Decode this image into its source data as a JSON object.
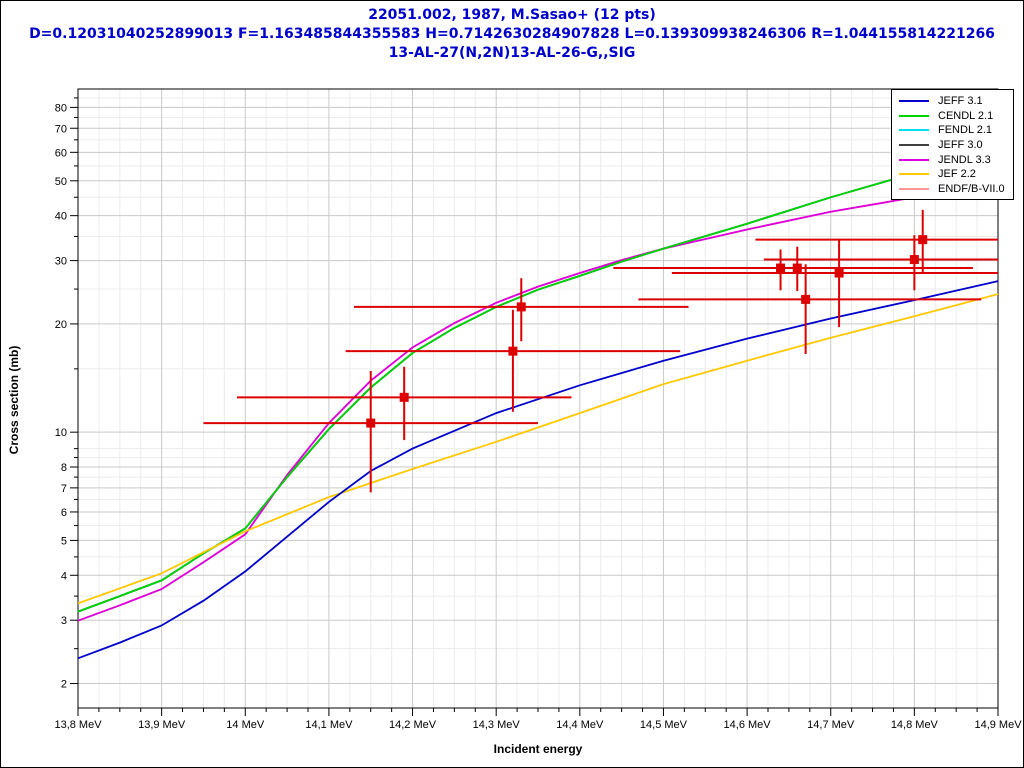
{
  "window": {
    "background": "#ffffff",
    "border_color": "#000000"
  },
  "title": {
    "line1": "22051.002, 1987, M.Sasao+ (12 pts)",
    "line2": "D=0.12031040252899013 F=1.163485844355583 H=0.7142630284907828 L=0.139309938246306 R=1.044155814221266",
    "line3": "13-AL-27(N,2N)13-AL-26-G,,SIG",
    "color": "#0000cc"
  },
  "chart_data": {
    "type": "line",
    "title": "22051.002, 1987, M.Sasao+ (12 pts)",
    "xlabel": "Incident energy",
    "ylabel": "Cross section (mb)",
    "x_axis": {
      "min": 13.8,
      "max": 14.9,
      "major_tick_step": 0.1,
      "minor_tick_step": 0.025,
      "tick_labels": [
        "13,8 MeV",
        "13,9 MeV",
        "14 MeV",
        "14,1 MeV",
        "14,2 MeV",
        "14,3 MeV",
        "14,4 MeV",
        "14,5 MeV",
        "14,6 MeV",
        "14,7 MeV",
        "14,8 MeV",
        "14,9 MeV"
      ]
    },
    "y_axis": {
      "scale": "log",
      "min": 1.71,
      "max": 90,
      "major_ticks": [
        80,
        70,
        60,
        50,
        40,
        30,
        20,
        10,
        8,
        7,
        6,
        5,
        4,
        3,
        2
      ],
      "minor_ticks": [
        85,
        75,
        65,
        55,
        45,
        35,
        25,
        15,
        9,
        8.5,
        7.5,
        6.5,
        5.5,
        4.5,
        3.5,
        2.5
      ]
    },
    "grid": {
      "major_color": "#c9c9c9",
      "minor_color": "#ececec"
    },
    "draw_order": [
      2,
      3,
      6,
      4,
      1,
      5,
      0
    ],
    "series": [
      {
        "name": "JEFF 3.1",
        "color": "#0000cc",
        "x": [
          13.8,
          13.85,
          13.9,
          13.95,
          14.0,
          14.1,
          14.15,
          14.2,
          14.3,
          14.4,
          14.5,
          14.6,
          14.7,
          14.8,
          14.9
        ],
        "y": [
          2.35,
          2.6,
          2.9,
          3.4,
          4.1,
          6.4,
          7.8,
          9.0,
          11.3,
          13.5,
          15.8,
          18.2,
          20.7,
          23.3,
          26.3
        ]
      },
      {
        "name": "CENDL 2.1",
        "color": "#00d400",
        "x": [
          13.8,
          13.85,
          13.9,
          13.95,
          14.0,
          14.05,
          14.1,
          14.15,
          14.2,
          14.25,
          14.3,
          14.35,
          14.4,
          14.45,
          14.5,
          14.6,
          14.7,
          14.8,
          14.9
        ],
        "y": [
          3.17,
          3.5,
          3.87,
          4.6,
          5.4,
          7.5,
          10.2,
          13.3,
          16.6,
          19.5,
          22.3,
          24.9,
          27.2,
          29.8,
          32.4,
          38.0,
          45.0,
          52.5,
          60.0
        ]
      },
      {
        "name": "FENDL 2.1",
        "color": "#00dfee",
        "x": [
          13.8,
          13.85,
          13.9,
          13.95,
          14.0,
          14.05,
          14.1,
          14.15,
          14.2,
          14.25,
          14.3,
          14.35,
          14.4,
          14.45,
          14.5,
          14.6,
          14.7,
          14.8,
          14.9
        ],
        "y": [
          3.17,
          3.5,
          3.87,
          4.6,
          5.4,
          7.5,
          10.2,
          13.3,
          16.6,
          19.5,
          22.3,
          24.9,
          27.2,
          29.8,
          32.4,
          38.0,
          45.0,
          52.5,
          60.0
        ]
      },
      {
        "name": "JEFF 3.0",
        "color": "#404040",
        "x": [
          13.8,
          13.85,
          13.9,
          13.95,
          14.0,
          14.05,
          14.1,
          14.15,
          14.2,
          14.25,
          14.3,
          14.35,
          14.4,
          14.45,
          14.5,
          14.6,
          14.7,
          14.8,
          14.9
        ],
        "y": [
          3.17,
          3.5,
          3.87,
          4.6,
          5.4,
          7.5,
          10.2,
          13.3,
          16.6,
          19.5,
          22.3,
          24.9,
          27.2,
          29.8,
          32.4,
          38.0,
          45.0,
          52.5,
          60.0
        ]
      },
      {
        "name": "JENDL 3.3",
        "color": "#dd00dd",
        "x": [
          13.8,
          13.85,
          13.9,
          13.95,
          14.0,
          14.05,
          14.1,
          14.15,
          14.2,
          14.25,
          14.3,
          14.35,
          14.4,
          14.45,
          14.5,
          14.6,
          14.7,
          14.8,
          14.9
        ],
        "y": [
          2.99,
          3.3,
          3.66,
          4.35,
          5.2,
          7.6,
          10.6,
          13.9,
          17.2,
          20.1,
          22.9,
          25.4,
          27.7,
          30.1,
          32.4,
          36.6,
          41.0,
          45.0,
          49.0
        ]
      },
      {
        "name": "JEF 2.2",
        "color": "#ffc800",
        "x": [
          13.8,
          13.9,
          14.0,
          14.1,
          14.2,
          14.3,
          14.4,
          14.5,
          14.6,
          14.7,
          14.8,
          14.9
        ],
        "y": [
          3.34,
          4.05,
          5.3,
          6.6,
          7.9,
          9.4,
          11.3,
          13.6,
          15.8,
          18.3,
          21.0,
          24.2
        ]
      },
      {
        "name": "ENDF/B-VII.0",
        "color": "#ff9999",
        "x": [
          13.8,
          13.85,
          13.9,
          13.95,
          14.0,
          14.05,
          14.1,
          14.15,
          14.2,
          14.25,
          14.3,
          14.35,
          14.4,
          14.45,
          14.5,
          14.6,
          14.7,
          14.8,
          14.9
        ],
        "y": [
          2.99,
          3.3,
          3.66,
          4.35,
          5.2,
          7.6,
          10.6,
          13.9,
          17.2,
          20.1,
          22.9,
          25.4,
          27.7,
          30.1,
          32.4,
          36.6,
          41.0,
          45.0,
          49.0
        ]
      }
    ],
    "points": {
      "name": "22051.002, 1987, M.Sasao+",
      "color": "#dd0000",
      "marker": "square",
      "data": [
        {
          "E": 14.15,
          "sig": 10.6,
          "E_min": 13.95,
          "E_max": 14.35,
          "sig_min": 6.8,
          "sig_max": 14.8
        },
        {
          "E": 14.19,
          "sig": 12.5,
          "E_min": 13.99,
          "E_max": 14.39,
          "sig_min": 9.5,
          "sig_max": 15.2
        },
        {
          "E": 14.32,
          "sig": 16.8,
          "E_min": 14.12,
          "E_max": 14.52,
          "sig_min": 11.4,
          "sig_max": 21.9
        },
        {
          "E": 14.33,
          "sig": 22.3,
          "E_min": 14.13,
          "E_max": 14.53,
          "sig_min": 17.9,
          "sig_max": 26.8
        },
        {
          "E": 14.64,
          "sig": 28.6,
          "E_min": 14.44,
          "E_max": 14.86,
          "sig_min": 24.8,
          "sig_max": 32.2
        },
        {
          "E": 14.66,
          "sig": 28.6,
          "E_min": 14.46,
          "E_max": 14.87,
          "sig_min": 24.7,
          "sig_max": 32.8
        },
        {
          "E": 14.67,
          "sig": 23.4,
          "E_min": 14.47,
          "E_max": 14.88,
          "sig_min": 16.5,
          "sig_max": 29.3
        },
        {
          "E": 14.71,
          "sig": 27.7,
          "E_min": 14.51,
          "E_max": 14.9,
          "sig_min": 19.6,
          "sig_max": 34.5
        },
        {
          "E": 14.8,
          "sig": 30.2,
          "E_min": 14.62,
          "E_max": 14.9,
          "sig_min": 24.8,
          "sig_max": 35.3
        },
        {
          "E": 14.81,
          "sig": 34.3,
          "E_min": 14.61,
          "E_max": 14.9,
          "sig_min": 27.6,
          "sig_max": 41.5
        }
      ]
    },
    "legend_position": "top-right"
  }
}
